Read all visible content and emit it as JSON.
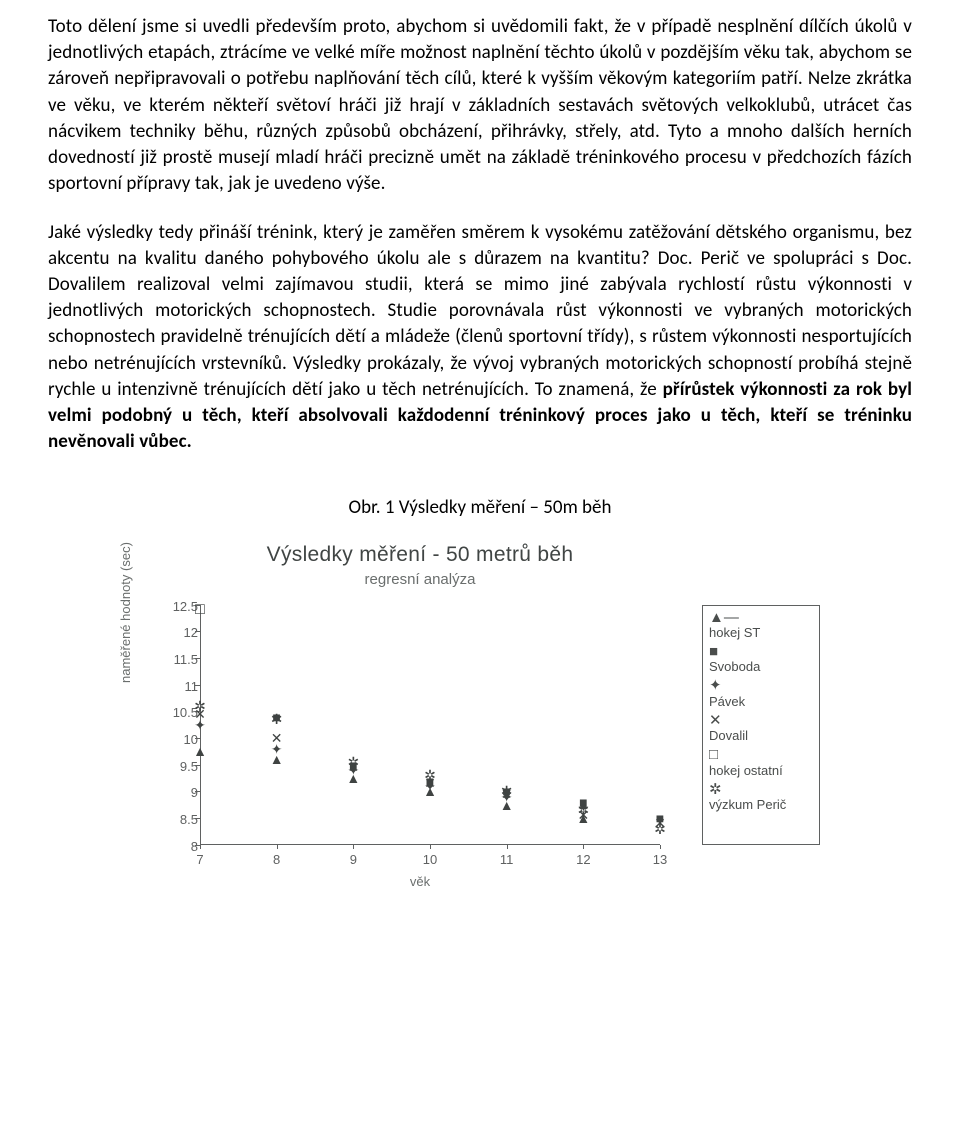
{
  "paragraphs": {
    "p1_pre": "Toto dělení jsme si uvedli především proto, abychom si uvědomili fakt, že v případě nesplnění dílčích úkolů v jednotlivých etapách, ztrácíme ve velké míře možnost naplnění těchto úkolů v pozdějším věku tak, abychom se zároveň nepřipravovali o potřebu naplňování těch cílů, které k vyšším věkovým kategoriím patří. Nelze zkrátka ve věku, ve kterém někteří světoví hráči již hrají v základních sestavách světových velkoklubů, utrácet čas nácvikem techniky běhu, různých způsobů obcházení, přihrávky, střely, atd. Tyto a mnoho dalších herních dovedností již prostě musejí mladí hráči precizně umět na základě tréninkového procesu v předchozích fázích sportovní přípravy tak, jak je uvedeno výše.",
    "p2_pre": "Jaké výsledky tedy přináší trénink, který je zaměřen směrem k vysokému zatěžování dětského organismu, bez akcentu na kvalitu daného pohybového úkolu ale s důrazem na kvantitu? Doc. Perič ve spolupráci s Doc. Dovalilem realizoval velmi zajímavou studii, která se mimo jiné zabývala rychlostí růstu výkonnosti v jednotlivých motorických schopnostech. Studie porovnávala růst výkonnosti ve vybraných motorických schopnostech pravidelně trénujících dětí a mládeže (členů sportovní třídy), s růstem výkonnosti nesportujících nebo netrénujících vrstevníků. Výsledky prokázaly, že vývoj vybraných motorických schopností probíhá stejně rychle u intenzivně trénujících dětí jako u těch netrénujících. To znamená, že ",
    "p2_bold": "přírůstek výkonnosti za rok byl velmi podobný u těch, kteří absolvovali každodenní tréninkový proces jako u těch, kteří se tréninku nevěnovali vůbec."
  },
  "caption": "Obr. 1 Výsledky měření – 50m běh",
  "chart": {
    "title": "Výsledky měření - 50 metrů běh",
    "subtitle": "regresní analýza",
    "ylabel": "naměřené hodnoty (sec)",
    "xlabel": "věk",
    "yticks": [
      "8",
      "8.5",
      "9",
      "9.5",
      "10",
      "10.5",
      "11",
      "11.5",
      "12",
      "12.5"
    ],
    "xticks": [
      "7",
      "8",
      "9",
      "10",
      "11",
      "12",
      "13"
    ],
    "ylim": [
      8,
      12.5
    ],
    "xlim": [
      7,
      13
    ],
    "legend": [
      {
        "sym": "▲—",
        "label": "hokej ST"
      },
      {
        "sym": "■",
        "label": "Svoboda"
      },
      {
        "sym": "✦",
        "label": "Pávek"
      },
      {
        "sym": "✕",
        "label": "Dovalil"
      },
      {
        "sym": "□",
        "label": "hokej ostatní"
      },
      {
        "sym": "✲",
        "label": "výzkum Perič"
      }
    ],
    "series": [
      {
        "name": "hokej ST",
        "symbol": "▲",
        "points": [
          [
            7,
            9.75
          ],
          [
            8,
            9.6
          ],
          [
            9,
            9.25
          ],
          [
            10,
            9.0
          ],
          [
            11,
            8.75
          ],
          [
            12,
            8.5
          ]
        ]
      },
      {
        "name": "Svoboda",
        "symbol": "■",
        "points": [
          [
            8,
            10.4
          ],
          [
            9,
            9.5
          ],
          [
            10,
            9.2
          ],
          [
            11,
            9.0
          ],
          [
            12,
            8.8
          ],
          [
            13,
            8.5
          ]
        ]
      },
      {
        "name": "Pávek",
        "symbol": "✦",
        "points": [
          [
            7,
            10.25
          ],
          [
            8,
            9.8
          ],
          [
            9,
            9.4
          ],
          [
            10,
            9.1
          ],
          [
            11,
            8.9
          ],
          [
            12,
            8.7
          ]
        ]
      },
      {
        "name": "Dovalil",
        "symbol": "✕",
        "points": [
          [
            7,
            10.45
          ],
          [
            8,
            10.0
          ],
          [
            9,
            9.45
          ],
          [
            10,
            9.15
          ],
          [
            11,
            8.95
          ],
          [
            12,
            8.55
          ],
          [
            13,
            8.4
          ]
        ]
      },
      {
        "name": "hokej ostatní",
        "symbol": "□",
        "points": [
          [
            7,
            12.4
          ]
        ]
      },
      {
        "name": "výzkum Perič",
        "symbol": "✲",
        "points": [
          [
            7,
            10.6
          ],
          [
            8,
            10.35
          ],
          [
            9,
            9.55
          ],
          [
            10,
            9.3
          ],
          [
            11,
            9.0
          ],
          [
            12,
            8.65
          ],
          [
            13,
            8.3
          ]
        ]
      }
    ]
  }
}
